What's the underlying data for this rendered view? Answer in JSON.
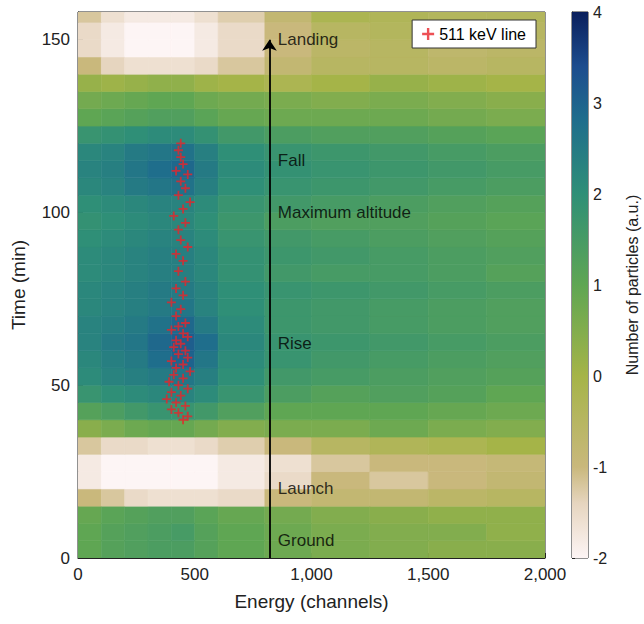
{
  "chart_data": {
    "type": "heatmap",
    "x_label": "Energy (channels)",
    "y_label": "Time (min)",
    "xlim": [
      0,
      2000
    ],
    "xticks": [
      0,
      500,
      1000,
      1500,
      2000
    ],
    "ylim": [
      0,
      158
    ],
    "yticks": [
      0,
      50,
      100,
      150
    ],
    "grid": false,
    "legend": "top right",
    "heatmap": {
      "x_edges": [
        0,
        100,
        200,
        300,
        400,
        500,
        600,
        800,
        1000,
        1250,
        1500,
        1750,
        2000
      ],
      "y_edges": [
        0,
        5,
        10,
        15,
        20,
        25,
        30,
        35,
        40,
        45,
        50,
        55,
        60,
        65,
        70,
        75,
        80,
        85,
        90,
        95,
        100,
        105,
        110,
        115,
        120,
        125,
        130,
        135,
        140,
        145,
        150,
        155,
        160
      ],
      "cells": [
        [
          1.0,
          1.2,
          1.3,
          1.4,
          1.4,
          1.2,
          1.0,
          0.8,
          0.6,
          0.5,
          0.4,
          0.4
        ],
        [
          1.0,
          1.2,
          1.3,
          1.4,
          1.5,
          1.2,
          1.0,
          0.8,
          0.6,
          0.5,
          0.5,
          0.3
        ],
        [
          0.9,
          1.1,
          1.2,
          1.3,
          1.3,
          1.1,
          0.9,
          0.7,
          0.5,
          0.4,
          0.3,
          0.3
        ],
        [
          -1.0,
          -1.2,
          -1.5,
          -1.6,
          -1.6,
          -1.6,
          -1.5,
          -1.0,
          -0.8,
          -0.8,
          -0.6,
          -0.5
        ],
        [
          -1.8,
          -2.0,
          -2.0,
          -2.0,
          -2.0,
          -2.0,
          -1.8,
          -1.5,
          -1.0,
          -1.2,
          -1.0,
          -0.8
        ],
        [
          -1.8,
          -2.0,
          -2.0,
          -2.0,
          -2.0,
          -2.0,
          -1.8,
          -1.6,
          -1.2,
          -1.0,
          -1.0,
          -0.9
        ],
        [
          -1.2,
          -1.5,
          -1.5,
          -1.6,
          -1.6,
          -1.5,
          -1.3,
          -1.0,
          -0.5,
          -0.3,
          -0.2,
          0.0
        ],
        [
          0.4,
          0.6,
          0.8,
          0.9,
          0.9,
          0.7,
          0.5,
          0.6,
          0.6,
          0.8,
          0.6,
          0.5
        ],
        [
          1.2,
          1.4,
          1.6,
          1.8,
          1.8,
          1.6,
          1.3,
          1.0,
          1.0,
          1.0,
          0.9,
          0.8
        ],
        [
          1.8,
          2.0,
          2.1,
          2.2,
          2.3,
          2.1,
          1.8,
          1.4,
          1.2,
          1.3,
          1.2,
          1.0
        ],
        [
          2.1,
          2.3,
          2.4,
          2.5,
          2.6,
          2.4,
          2.0,
          1.6,
          1.5,
          1.4,
          1.3,
          1.2
        ],
        [
          2.2,
          2.4,
          2.5,
          2.8,
          3.0,
          2.6,
          2.1,
          1.8,
          1.6,
          1.5,
          1.4,
          1.3
        ],
        [
          2.3,
          2.5,
          2.6,
          2.9,
          3.1,
          2.8,
          2.2,
          1.8,
          1.7,
          1.6,
          1.5,
          1.4
        ],
        [
          2.3,
          2.4,
          2.5,
          2.7,
          2.9,
          2.5,
          2.1,
          1.7,
          1.6,
          1.5,
          1.4,
          1.3
        ],
        [
          2.2,
          2.3,
          2.4,
          2.5,
          2.6,
          2.3,
          2.0,
          1.7,
          1.6,
          1.5,
          1.4,
          1.3
        ],
        [
          2.2,
          2.3,
          2.4,
          2.5,
          2.5,
          2.3,
          2.0,
          1.8,
          1.7,
          1.6,
          1.5,
          1.4
        ],
        [
          2.1,
          2.2,
          2.3,
          2.4,
          2.4,
          2.2,
          1.9,
          1.6,
          1.5,
          1.5,
          1.4,
          1.2
        ],
        [
          2.1,
          2.2,
          2.3,
          2.4,
          2.4,
          2.2,
          1.9,
          1.7,
          1.6,
          1.5,
          1.4,
          1.3
        ],
        [
          2.0,
          2.1,
          2.2,
          2.3,
          2.3,
          2.1,
          1.8,
          1.6,
          1.5,
          1.4,
          1.3,
          1.2
        ],
        [
          1.9,
          2.0,
          2.1,
          2.2,
          2.2,
          2.0,
          1.7,
          1.4,
          1.3,
          1.3,
          1.2,
          1.1
        ],
        [
          2.0,
          2.1,
          2.2,
          2.3,
          2.3,
          2.1,
          1.8,
          1.6,
          1.5,
          1.4,
          1.3,
          1.2
        ],
        [
          2.2,
          2.3,
          2.5,
          2.6,
          2.7,
          2.4,
          2.0,
          1.8,
          1.7,
          1.6,
          1.5,
          1.4
        ],
        [
          2.3,
          2.4,
          2.6,
          2.8,
          2.9,
          2.5,
          2.1,
          1.9,
          1.8,
          1.7,
          1.6,
          1.5
        ],
        [
          2.2,
          2.3,
          2.5,
          2.6,
          2.7,
          2.4,
          2.0,
          1.8,
          1.7,
          1.6,
          1.5,
          1.4
        ],
        [
          1.8,
          1.9,
          2.0,
          2.1,
          2.1,
          1.9,
          1.6,
          1.4,
          1.3,
          1.3,
          1.2,
          1.1
        ],
        [
          1.0,
          1.1,
          1.2,
          1.3,
          1.3,
          1.1,
          0.9,
          0.8,
          0.8,
          0.8,
          0.7,
          0.6
        ],
        [
          0.7,
          0.8,
          0.9,
          1.0,
          1.0,
          0.8,
          0.7,
          0.6,
          0.5,
          0.6,
          0.5,
          0.4
        ],
        [
          0.2,
          0.1,
          0.2,
          0.3,
          0.3,
          0.1,
          0.0,
          -0.2,
          0.0,
          0.2,
          0.1,
          0.0
        ],
        [
          -1.0,
          -1.4,
          -1.6,
          -1.6,
          -1.6,
          -1.5,
          -1.2,
          -0.8,
          -0.5,
          -0.5,
          -0.6,
          -0.5
        ],
        [
          -1.5,
          -1.8,
          -2.0,
          -2.0,
          -2.0,
          -1.8,
          -1.5,
          -1.0,
          -0.6,
          -0.5,
          -0.7,
          -0.6
        ],
        [
          -1.5,
          -1.8,
          -2.0,
          -2.0,
          -2.0,
          -1.8,
          -1.5,
          -1.0,
          -0.5,
          -0.4,
          -0.6,
          -0.5
        ],
        [
          -1.2,
          -1.6,
          -1.8,
          -1.8,
          -1.8,
          -1.6,
          -1.3,
          -0.8,
          -0.2,
          -0.3,
          -0.4,
          -0.4
        ]
      ]
    },
    "colorbar": {
      "range": [
        -2,
        4
      ],
      "ticks": [
        -2,
        -1,
        0,
        1,
        2,
        3,
        4
      ],
      "label": "Number of particles (a.u.)"
    },
    "series": [
      {
        "name": "511 keV line",
        "type": "scatter",
        "color": "#e8242b",
        "marker": "plus",
        "points": [
          [
            450,
            40
          ],
          [
            470,
            41
          ],
          [
            430,
            42
          ],
          [
            400,
            43
          ],
          [
            460,
            44
          ],
          [
            420,
            45
          ],
          [
            380,
            46
          ],
          [
            440,
            47
          ],
          [
            400,
            48
          ],
          [
            470,
            49
          ],
          [
            430,
            50
          ],
          [
            390,
            51
          ],
          [
            450,
            52
          ],
          [
            410,
            53
          ],
          [
            480,
            54
          ],
          [
            420,
            55
          ],
          [
            450,
            56
          ],
          [
            400,
            57
          ],
          [
            470,
            58
          ],
          [
            430,
            59
          ],
          [
            460,
            60
          ],
          [
            410,
            61
          ],
          [
            440,
            62
          ],
          [
            420,
            63
          ],
          [
            470,
            64
          ],
          [
            450,
            65
          ],
          [
            400,
            66
          ],
          [
            430,
            67
          ],
          [
            460,
            68
          ],
          [
            420,
            70
          ],
          [
            440,
            72
          ],
          [
            400,
            74
          ],
          [
            450,
            76
          ],
          [
            420,
            78
          ],
          [
            460,
            80
          ],
          [
            430,
            83
          ],
          [
            450,
            86
          ],
          [
            420,
            88
          ],
          [
            470,
            90
          ],
          [
            440,
            92
          ],
          [
            430,
            95
          ],
          [
            460,
            97
          ],
          [
            410,
            99
          ],
          [
            450,
            101
          ],
          [
            480,
            103
          ],
          [
            430,
            105
          ],
          [
            460,
            107
          ],
          [
            440,
            109
          ],
          [
            470,
            111
          ],
          [
            420,
            112
          ],
          [
            450,
            114
          ],
          [
            440,
            116
          ],
          [
            430,
            118
          ],
          [
            440,
            120
          ]
        ]
      }
    ],
    "annotations": [
      {
        "text": "Landing",
        "x": 830,
        "y": 150
      },
      {
        "text": "Fall",
        "x": 830,
        "y": 115
      },
      {
        "text": "Maximum altitude",
        "x": 830,
        "y": 100
      },
      {
        "text": "Rise",
        "x": 830,
        "y": 62
      },
      {
        "text": "Launch",
        "x": 830,
        "y": 20
      },
      {
        "text": "Ground",
        "x": 830,
        "y": 5
      }
    ],
    "arrow": {
      "x": 820,
      "y_start": 0,
      "y_end": 150
    }
  }
}
